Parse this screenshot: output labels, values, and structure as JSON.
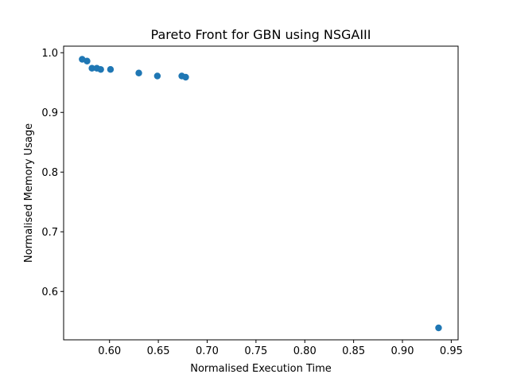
{
  "chart_data": {
    "type": "scatter",
    "title": "Pareto Front for GBN using NSGAIII",
    "xlabel": "Normalised Execution Time",
    "ylabel": "Normalised Memory Usage",
    "xlim": [
      0.553,
      0.957
    ],
    "ylim": [
      0.519,
      1.011
    ],
    "xticks": [
      0.6,
      0.65,
      0.7,
      0.75,
      0.8,
      0.85,
      0.9,
      0.95
    ],
    "xtick_labels": [
      "0.60",
      "0.65",
      "0.70",
      "0.75",
      "0.80",
      "0.85",
      "0.90",
      "0.95"
    ],
    "yticks": [
      0.6,
      0.7,
      0.8,
      0.9,
      1.0
    ],
    "ytick_labels": [
      "0.6",
      "0.7",
      "0.8",
      "0.9",
      "1.0"
    ],
    "grid": false,
    "marker_color": "#1f77b4",
    "points": [
      {
        "x": 0.572,
        "y": 0.989
      },
      {
        "x": 0.577,
        "y": 0.986
      },
      {
        "x": 0.582,
        "y": 0.974
      },
      {
        "x": 0.587,
        "y": 0.974
      },
      {
        "x": 0.591,
        "y": 0.972
      },
      {
        "x": 0.601,
        "y": 0.972
      },
      {
        "x": 0.63,
        "y": 0.966
      },
      {
        "x": 0.649,
        "y": 0.961
      },
      {
        "x": 0.674,
        "y": 0.961
      },
      {
        "x": 0.678,
        "y": 0.959
      },
      {
        "x": 0.937,
        "y": 0.539
      }
    ]
  }
}
